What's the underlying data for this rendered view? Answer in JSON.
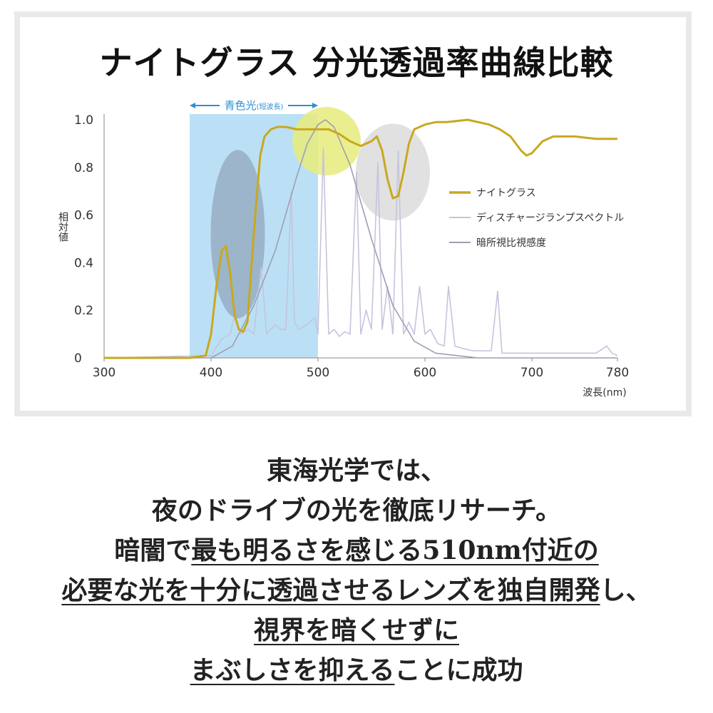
{
  "chart_data": {
    "type": "line",
    "title": "ナイトグラス 分光透過率曲線比較",
    "xlabel": "波長(nm)",
    "ylabel": "相対値",
    "xlim": [
      300,
      780
    ],
    "ylim": [
      0,
      1.0
    ],
    "x_ticks": [
      "300",
      "400",
      "500",
      "600",
      "700",
      "780"
    ],
    "y_ticks": [
      "0",
      "0.2",
      "0.4",
      "0.6",
      "0.8",
      "1.0"
    ],
    "band": {
      "label": "青色光",
      "sublabel": "(短波長)",
      "from": 380,
      "to": 500,
      "color": "#aad8f2"
    },
    "highlights": [
      {
        "cx": 425,
        "cy": 0.52,
        "color": "#8fa3b8",
        "label": ""
      },
      {
        "cx": 508,
        "cy": 0.91,
        "color": "#e8eb7a",
        "label": ""
      },
      {
        "cx": 570,
        "cy": 0.78,
        "color": "#d4d4d4",
        "label": ""
      }
    ],
    "legend_position": "right",
    "series": [
      {
        "name": "ナイトグラス",
        "color": "#c9a81e",
        "x": [
          300,
          380,
          395,
          400,
          405,
          410,
          414,
          418,
          422,
          426,
          430,
          434,
          438,
          442,
          446,
          450,
          456,
          462,
          470,
          480,
          490,
          500,
          510,
          520,
          530,
          540,
          550,
          555,
          560,
          565,
          570,
          575,
          580,
          585,
          590,
          600,
          610,
          620,
          640,
          660,
          670,
          680,
          690,
          695,
          700,
          710,
          720,
          740,
          760,
          780
        ],
        "y": [
          0.0,
          0.0,
          0.01,
          0.1,
          0.3,
          0.45,
          0.47,
          0.35,
          0.18,
          0.12,
          0.11,
          0.15,
          0.4,
          0.64,
          0.85,
          0.93,
          0.96,
          0.97,
          0.97,
          0.96,
          0.96,
          0.96,
          0.96,
          0.94,
          0.91,
          0.89,
          0.91,
          0.93,
          0.87,
          0.75,
          0.67,
          0.68,
          0.78,
          0.9,
          0.96,
          0.98,
          0.99,
          0.99,
          1.0,
          0.98,
          0.96,
          0.93,
          0.87,
          0.85,
          0.86,
          0.91,
          0.93,
          0.93,
          0.92,
          0.92
        ]
      },
      {
        "name": "ディスチャージランプスペクトル",
        "color": "#c4c4de",
        "x": [
          300,
          400,
          410,
          418,
          422,
          428,
          435,
          440,
          447,
          452,
          460,
          465,
          470,
          475,
          478,
          482,
          490,
          497,
          500,
          505,
          510,
          515,
          520,
          525,
          530,
          536,
          540,
          545,
          550,
          556,
          560,
          565,
          570,
          575,
          580,
          585,
          590,
          595,
          600,
          605,
          612,
          618,
          622,
          628,
          635,
          645,
          655,
          662,
          668,
          672,
          676,
          685,
          700,
          720,
          740,
          760,
          770,
          775,
          780
        ],
        "y": [
          0.0,
          0.01,
          0.08,
          0.1,
          0.18,
          0.1,
          0.12,
          0.1,
          0.38,
          0.1,
          0.14,
          0.12,
          0.12,
          0.7,
          0.15,
          0.12,
          0.14,
          0.17,
          0.1,
          0.88,
          0.1,
          0.12,
          0.09,
          0.11,
          0.1,
          0.78,
          0.1,
          0.2,
          0.12,
          0.82,
          0.12,
          0.3,
          0.1,
          0.87,
          0.1,
          0.15,
          0.1,
          0.3,
          0.1,
          0.12,
          0.06,
          0.05,
          0.3,
          0.05,
          0.04,
          0.03,
          0.03,
          0.03,
          0.28,
          0.02,
          0.02,
          0.02,
          0.02,
          0.02,
          0.02,
          0.02,
          0.05,
          0.02,
          0.01
        ]
      },
      {
        "name": "暗所視比視感度",
        "color": "#9e9eb4",
        "x": [
          380,
          400,
          420,
          440,
          460,
          480,
          490,
          500,
          507,
          515,
          530,
          550,
          570,
          590,
          610,
          630,
          650,
          670,
          700,
          780
        ],
        "y": [
          0.0,
          0.0,
          0.05,
          0.22,
          0.45,
          0.76,
          0.9,
          0.98,
          1.0,
          0.97,
          0.81,
          0.5,
          0.22,
          0.07,
          0.02,
          0.01,
          0.0,
          0.0,
          0.0,
          0.0
        ]
      }
    ]
  },
  "caption": {
    "line1": "東海光学では、",
    "line2": "夜のドライブの光を徹底リサーチ。",
    "line3_plain": "暗闇で",
    "line3_ul": "最も明るさを感じる510nm付近の",
    "line4_ul": "必要な光を十分に透過させるレンズを独自開発",
    "line4_plain": "し、",
    "line5_ul": "視界を暗くせずに",
    "line6_ul": "まぶしさを抑える",
    "line6_plain": "ことに成功"
  }
}
